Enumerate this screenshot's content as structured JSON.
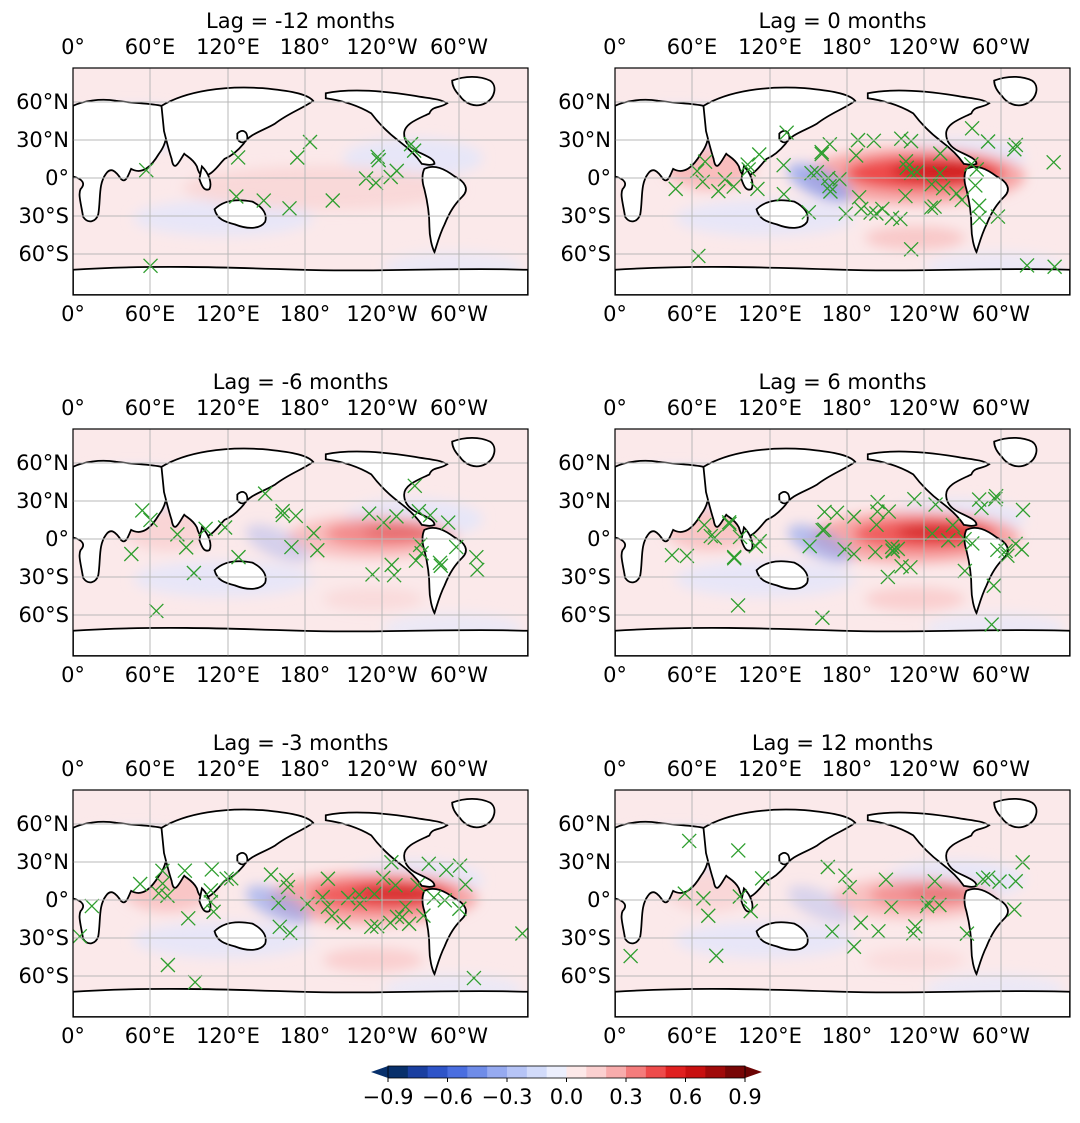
{
  "figure": {
    "panels": [
      {
        "id": "lag-m12",
        "title": "Lag = -12 months",
        "lag": -12,
        "strength": 0.12
      },
      {
        "id": "lag-0",
        "title": "Lag = 0 months",
        "lag": 0,
        "strength": 1.0
      },
      {
        "id": "lag-m6",
        "title": "Lag = -6 months",
        "lag": -6,
        "strength": 0.45
      },
      {
        "id": "lag-6",
        "title": "Lag = 6 months",
        "lag": 6,
        "strength": 0.8
      },
      {
        "id": "lag-m3",
        "title": "Lag = -3 months",
        "lag": -3,
        "strength": 0.8
      },
      {
        "id": "lag-12",
        "title": "Lag = 12 months",
        "lag": 12,
        "strength": 0.4
      }
    ],
    "lon_ticks": [
      "0°",
      "60°E",
      "120°E",
      "180°",
      "120°W",
      "60°W"
    ],
    "lat_ticks": [
      "60°N",
      "30°N",
      "0°",
      "30°S",
      "60°S"
    ],
    "colorbar": {
      "tick_labels": [
        "−0.9",
        "−0.6",
        "−0.3",
        "0.0",
        "0.3",
        "0.6",
        "0.9"
      ],
      "levels": [
        -0.9,
        -0.8,
        -0.7,
        -0.6,
        -0.5,
        -0.4,
        -0.3,
        -0.2,
        -0.1,
        0.0,
        0.1,
        0.2,
        0.3,
        0.4,
        0.5,
        0.6,
        0.7,
        0.8,
        0.9
      ],
      "colors": [
        "#08306b",
        "#1a3fa0",
        "#2e54c8",
        "#4a6ee0",
        "#6f8ce8",
        "#96aaf0",
        "#b6c4f6",
        "#d2dbfa",
        "#eceffd",
        "#fde9e9",
        "#fbd0d0",
        "#f8acac",
        "#f47c7c",
        "#ee4b4b",
        "#e02020",
        "#c81010",
        "#a00a0a",
        "#780606"
      ],
      "extend_low_color": "#08306b",
      "extend_high_color": "#6b0303"
    },
    "hatch_color": "#2e9e2e",
    "coast_color": "#000000"
  }
}
